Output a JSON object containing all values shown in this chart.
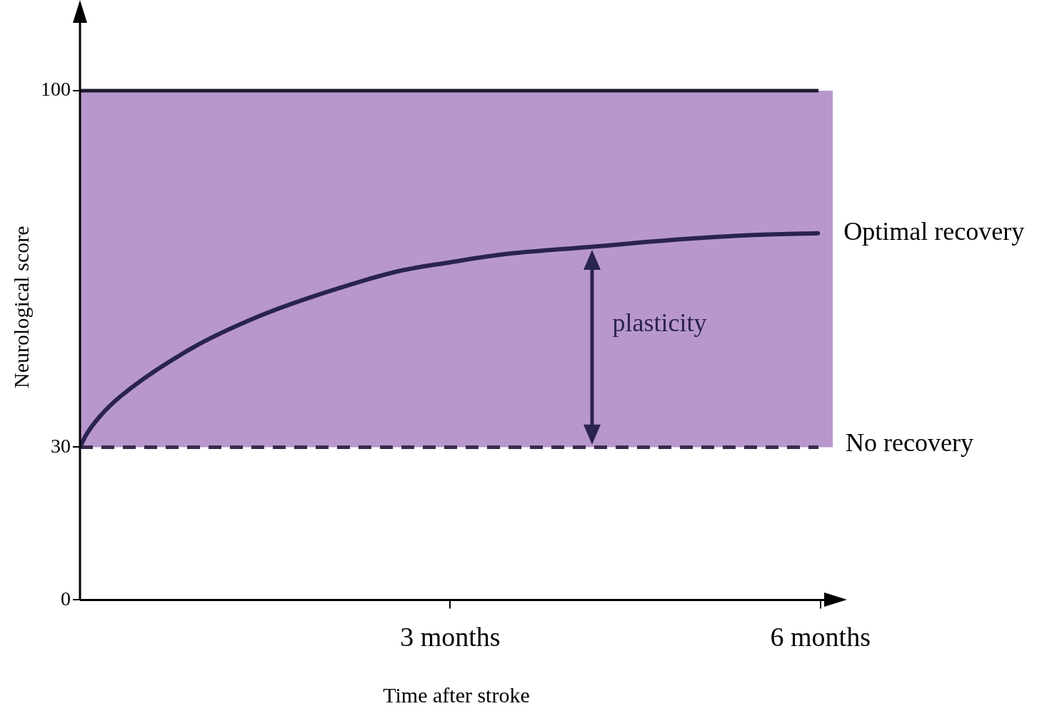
{
  "chart_data": {
    "type": "line",
    "xlabel": "Time after stroke",
    "ylabel": "Neurological score",
    "x": [
      0,
      0.05,
      0.16,
      0.33,
      0.89,
      1.46,
      2.03,
      2.59,
      3,
      3.44,
      4.13,
      4.86,
      5.42,
      5.98
    ],
    "series": [
      {
        "name": "Optimal recovery",
        "color": "#2a2350",
        "values": [
          30,
          32.4,
          36,
          40,
          49.2,
          55.8,
          60.7,
          64.6,
          66.3,
          67.9,
          69.3,
          70.8,
          71.6,
          72
        ]
      }
    ],
    "xlim": [
      0,
      6.1
    ],
    "xticks": [
      {
        "value": 3,
        "label": "3 months"
      },
      {
        "value": 6,
        "label": "6 months"
      }
    ],
    "ylim": [
      0,
      115
    ],
    "yticks": [
      0,
      30,
      100
    ],
    "ref_lines": [
      {
        "axis": "y",
        "value": 100,
        "label": null,
        "color": "#1a1a2e",
        "line_style": "solid"
      },
      {
        "axis": "y",
        "value": 30,
        "label": "No recovery",
        "color": "#3a2a4a",
        "line_style": "dashed"
      }
    ],
    "bands": [
      {
        "axis": "y",
        "from": 30,
        "to": 100,
        "color": "#b898cc"
      }
    ],
    "annotations": [
      "plasticity"
    ],
    "grid": false,
    "legend": false,
    "marker": "none",
    "line_style": "solid"
  }
}
